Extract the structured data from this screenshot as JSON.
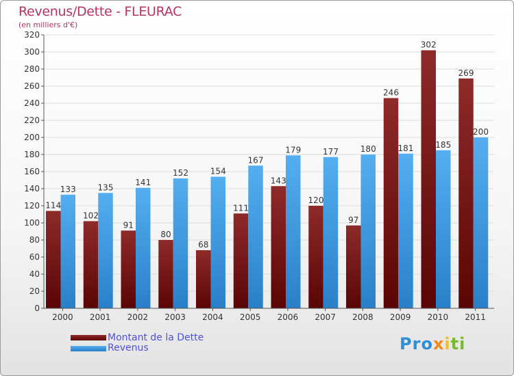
{
  "title": "Revenus/Dette - FLEURAC",
  "subtitle": "(en milliers d'€)",
  "logo": {
    "letters": [
      "P",
      "r",
      "o",
      "x",
      "i",
      "t",
      "i"
    ],
    "colors": [
      "#2c8fd8",
      "#2c8fd8",
      "#2c8fd8",
      "#f08a1c",
      "#f0c020",
      "#7ab82e",
      "#7ab82e"
    ]
  },
  "colors": {
    "dette": "#8b1a1a",
    "revenus": "#3a9ae0",
    "title": "#b5345c",
    "legend_text": "#5050d8"
  },
  "chart_data": {
    "type": "bar",
    "title": "Revenus/Dette - FLEURAC",
    "ylabel": "(en milliers d'€)",
    "categories": [
      "2000",
      "2001",
      "2002",
      "2003",
      "2004",
      "2005",
      "2006",
      "2007",
      "2008",
      "2009",
      "2010",
      "2011"
    ],
    "series": [
      {
        "name": "Montant de la Dette",
        "values": [
          114,
          102,
          91,
          80,
          68,
          111,
          143,
          120,
          97,
          246,
          302,
          269
        ]
      },
      {
        "name": "Revenus",
        "values": [
          133,
          135,
          141,
          152,
          154,
          167,
          179,
          177,
          180,
          181,
          185,
          200
        ]
      }
    ],
    "ylim": [
      0,
      320
    ],
    "yticks": [
      0,
      20,
      40,
      60,
      80,
      100,
      120,
      140,
      160,
      180,
      200,
      220,
      240,
      260,
      280,
      300,
      320
    ],
    "grid": true,
    "legend": "bottom-left"
  }
}
